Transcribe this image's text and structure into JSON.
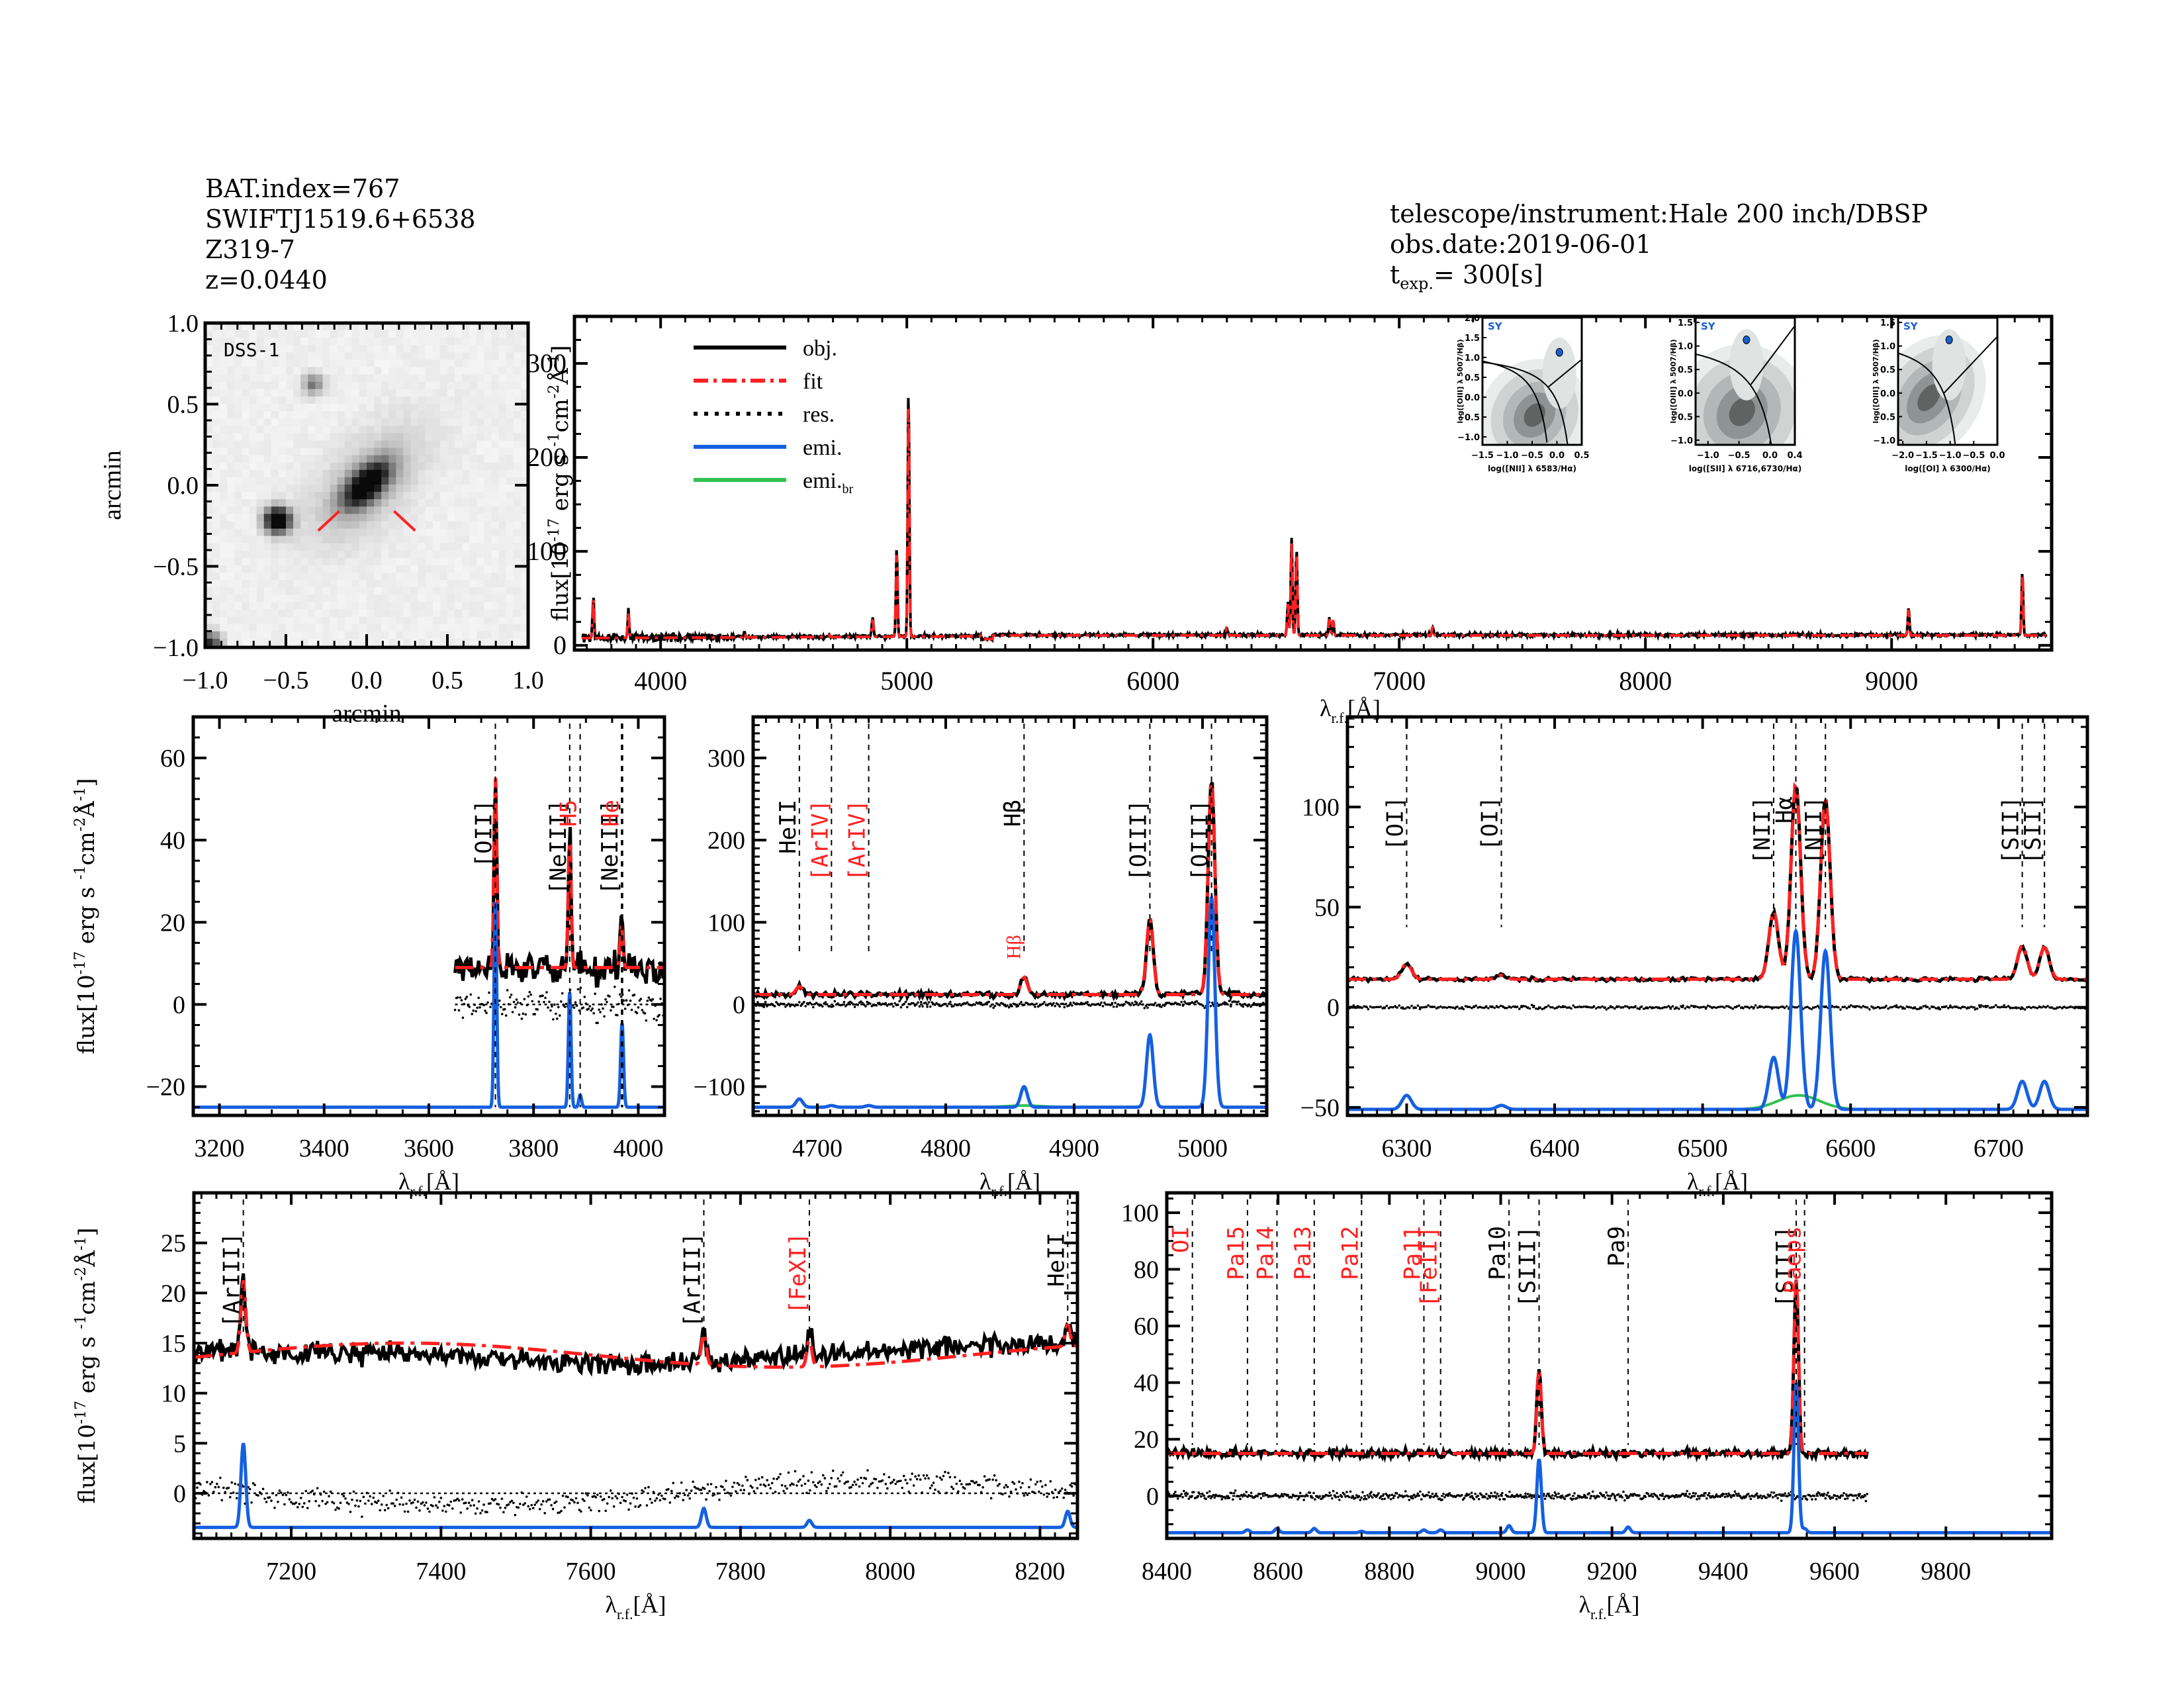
{
  "header_left": {
    "bat_index": "BAT.index=767",
    "swift_name": "SWIFTJ1519.6+6538",
    "galaxy_name": "Z319-7",
    "redshift": "z=0.0440"
  },
  "header_right": {
    "telescope": "telescope/instrument:Hale 200 inch/DBSP",
    "obs_date": "obs.date:2019-06-01",
    "texp_prefix": "t",
    "texp_sub": "exp.",
    "texp_value": "= 300[s]"
  },
  "colors": {
    "obj": "#000000",
    "fit": "#ff2020",
    "res": "#000000",
    "emi": "#1560e0",
    "emi_br": "#30c050",
    "line_label_black": "#000000",
    "line_label_red": "#ff2020",
    "bpt_point": "#1a5fd0",
    "bpt_label": "#1a5fd0"
  },
  "chart_data": [
    {
      "id": "dss-image",
      "type": "heatmap",
      "title": "DSS-1",
      "xlabel": "arcmin",
      "ylabel": "arcmin",
      "xlim": [
        -1.0,
        1.0
      ],
      "ylim": [
        -1.0,
        1.0
      ],
      "xticks": [
        "-1.0",
        "-0.5",
        "0.0",
        "0.5",
        "1.0"
      ],
      "yticks": [
        "-1.0",
        "-0.5",
        "0.0",
        "0.5",
        "1.0"
      ],
      "sources": [
        {
          "name": "target galaxy",
          "x": 0.0,
          "y": 0.0,
          "brightness": 1.0,
          "elongated": true
        },
        {
          "name": "star",
          "x": -0.55,
          "y": -0.22,
          "brightness": 1.0
        },
        {
          "name": "faint source",
          "x": -0.33,
          "y": 0.62,
          "brightness": 0.35
        },
        {
          "name": "corner source",
          "x": -0.97,
          "y": -0.98,
          "brightness": 0.6
        }
      ],
      "markers": "red target ticks below galaxy"
    },
    {
      "id": "full-spectrum",
      "type": "line",
      "xlabel": "λr.f.[Å]",
      "ylabel": "flux[10^-17 erg s^-1 cm^-2 Å^-1]",
      "xlim": [
        3650,
        9650
      ],
      "ylim": [
        -5,
        350
      ],
      "xticks": [
        4000,
        5000,
        6000,
        7000,
        8000,
        9000
      ],
      "yticks": [
        0,
        100,
        200,
        300
      ],
      "legend": {
        "position": "top-left",
        "entries": [
          "obj.",
          "fit",
          "res.",
          "emi.",
          "emi.br"
        ]
      },
      "continuum": 10,
      "peaks": [
        {
          "x": 3727,
          "y": 55
        },
        {
          "x": 3869,
          "y": 38
        },
        {
          "x": 4340,
          "y": 15
        },
        {
          "x": 4686,
          "y": 12
        },
        {
          "x": 4861,
          "y": 30
        },
        {
          "x": 4959,
          "y": 105
        },
        {
          "x": 5007,
          "y": 275
        },
        {
          "x": 6300,
          "y": 18
        },
        {
          "x": 6548,
          "y": 45
        },
        {
          "x": 6563,
          "y": 112
        },
        {
          "x": 6583,
          "y": 104
        },
        {
          "x": 6716,
          "y": 28
        },
        {
          "x": 6731,
          "y": 27
        },
        {
          "x": 7136,
          "y": 20
        },
        {
          "x": 9069,
          "y": 40
        },
        {
          "x": 9531,
          "y": 78
        }
      ]
    },
    {
      "id": "bpt-nii",
      "type": "scatter",
      "label": "SY",
      "xlabel": "log([NII] λ 6583/Hα)",
      "ylabel": "log([OIII] λ 5007/Hβ)",
      "xlim": [
        -1.5,
        0.5
      ],
      "ylim": [
        -1.2,
        2.0
      ],
      "xticks": [
        "-1.5",
        "-1.0",
        "-0.5",
        "0.0",
        "0.5"
      ],
      "yticks": [
        "-1.0",
        "-0.5",
        "0.0",
        "0.5",
        "1.0",
        "1.5",
        "2.0"
      ],
      "point": {
        "x": 0.05,
        "y": 1.13
      }
    },
    {
      "id": "bpt-sii",
      "type": "scatter",
      "label": "SY",
      "xlabel": "log([SII] λ 6716,6730/Hα)",
      "ylabel": "log([OIII] λ 5007/Hβ)",
      "xlim": [
        -1.2,
        0.4
      ],
      "ylim": [
        -1.1,
        1.6
      ],
      "xticks": [
        "-1.0",
        "-0.5",
        "0.0",
        "0.4"
      ],
      "yticks": [
        "-1.0",
        "-0.5",
        "0.0",
        "0.5",
        "1.0",
        "1.5"
      ],
      "point": {
        "x": -0.38,
        "y": 1.13
      }
    },
    {
      "id": "bpt-oi",
      "type": "scatter",
      "label": "SY",
      "xlabel": "log([OI] λ 6300/Hα)",
      "ylabel": "log([OIII] λ 5007/Hβ)",
      "xlim": [
        -2.1,
        0.0
      ],
      "ylim": [
        -1.1,
        1.6
      ],
      "xticks": [
        "-2.0",
        "-1.5",
        "-1.0",
        "-0.5",
        "0.0"
      ],
      "yticks": [
        "-1.0",
        "-0.5",
        "0.0",
        "0.5",
        "1.0",
        "1.5"
      ],
      "point": {
        "x": -1.02,
        "y": 1.13
      }
    },
    {
      "id": "zoom-oii",
      "type": "line",
      "xlabel": "λr.f.[Å]",
      "ylabel": "flux[10^-17 erg s^-1 cm^-2 Å^-1]",
      "xlim": [
        3150,
        4050
      ],
      "ylim": [
        -27,
        70
      ],
      "xticks": [
        3200,
        3400,
        3600,
        3800,
        4000
      ],
      "yticks": [
        -20,
        0,
        20,
        40,
        60
      ],
      "data_start": 3650,
      "continuum": 9,
      "emi_base": -25,
      "lines": [
        {
          "label": "[OII]",
          "x": 3727,
          "color": "black",
          "peak": 56,
          "emi": 25
        },
        {
          "label": "[NeIII]",
          "x": 3869,
          "color": "black",
          "peak": 42,
          "emi": 3
        },
        {
          "label": "H5",
          "x": 3889,
          "color": "red",
          "peak": 0,
          "emi": -22
        },
        {
          "label": "[NeIII]",
          "x": 3968,
          "color": "black",
          "peak": 20,
          "emi": -14
        },
        {
          "label": "He",
          "x": 3970,
          "color": "red",
          "peak": 0,
          "emi": -14
        }
      ]
    },
    {
      "id": "zoom-hbeta-oiii",
      "type": "line",
      "xlabel": "λr.f.[Å]",
      "xlim": [
        4650,
        5050
      ],
      "ylim": [
        -135,
        350
      ],
      "xticks": [
        4700,
        4800,
        4900,
        5000
      ],
      "yticks": [
        -100,
        0,
        100,
        200,
        300
      ],
      "continuum": 12,
      "emi_base": -125,
      "lines": [
        {
          "label": "HeII",
          "x": 4686,
          "color": "black",
          "peak": 22,
          "emi": -115
        },
        {
          "label": "[ArIV]",
          "x": 4711,
          "color": "red",
          "peak": 0,
          "emi": -123
        },
        {
          "label": "[ArIV]",
          "x": 4740,
          "color": "red",
          "peak": 0,
          "emi": -123
        },
        {
          "label": "Hβ",
          "x": 4861,
          "color": "black",
          "peak": 33,
          "emi": -100
        },
        {
          "label": "[OIII]",
          "x": 4959,
          "color": "black",
          "peak": 105,
          "emi": -37
        },
        {
          "label": "[OIII]",
          "x": 5007,
          "color": "black",
          "peak": 275,
          "emi": 130
        }
      ],
      "annotations": [
        {
          "label": "Hβbr",
          "x": 4861,
          "color": "red"
        }
      ]
    },
    {
      "id": "zoom-halpha",
      "type": "line",
      "xlabel": "λr.f.[Å]",
      "xlim": [
        6260,
        6760
      ],
      "ylim": [
        -54,
        145
      ],
      "xticks": [
        6300,
        6400,
        6500,
        6600,
        6700
      ],
      "yticks": [
        -50,
        0,
        50,
        100
      ],
      "continuum": 14,
      "emi_base": -51,
      "lines": [
        {
          "label": "[OI]",
          "x": 6300,
          "color": "black",
          "peak": 22,
          "emi": -44
        },
        {
          "label": "[OI]",
          "x": 6364,
          "color": "black",
          "peak": 16,
          "emi": -49
        },
        {
          "label": "[NII]",
          "x": 6548,
          "color": "black",
          "peak": 48,
          "emi": -25
        },
        {
          "label": "Hα",
          "x": 6563,
          "color": "black",
          "peak": 112,
          "emi": 38
        },
        {
          "label": "[NII]",
          "x": 6583,
          "color": "black",
          "peak": 104,
          "emi": 28
        },
        {
          "label": "[SII]",
          "x": 6716,
          "color": "black",
          "peak": 31,
          "emi": -37
        },
        {
          "label": "[SII]",
          "x": 6731,
          "color": "black",
          "peak": 30,
          "emi": -37
        }
      ],
      "broad_halpha": {
        "x": 6565,
        "peak": -44
      }
    },
    {
      "id": "zoom-ariii",
      "type": "line",
      "xlabel": "λr.f.[Å]",
      "ylabel": "flux[10^-17 erg s^-1 cm^-2 Å^-1]",
      "xlim": [
        7070,
        8250
      ],
      "ylim": [
        -4.5,
        30
      ],
      "xticks": [
        7200,
        7400,
        7600,
        7800,
        8000,
        8200
      ],
      "yticks": [
        0,
        5,
        10,
        15,
        20,
        25
      ],
      "continuum": 13.8,
      "emi_base": -3.4,
      "lines": [
        {
          "label": "[ArIII]",
          "x": 7136,
          "color": "black",
          "peak": 21,
          "emi": 5
        },
        {
          "label": "[ArIII]",
          "x": 7751,
          "color": "black",
          "peak": 17,
          "emi": -1.5
        },
        {
          "label": "[FeXI]",
          "x": 7892,
          "color": "red",
          "peak": 16.5,
          "emi": -2.7
        },
        {
          "label": "HeII",
          "x": 8237,
          "color": "black",
          "peak": 16,
          "emi": -1.8
        }
      ]
    },
    {
      "id": "zoom-siii",
      "type": "line",
      "xlabel": "λr.f.[Å]",
      "xlim": [
        8400,
        9990
      ],
      "ylim": [
        -15,
        107
      ],
      "xticks": [
        8400,
        8600,
        8800,
        9000,
        9200,
        9400,
        9600,
        9800
      ],
      "yticks": [
        0,
        20,
        40,
        60,
        80,
        100
      ],
      "data_end": 9660,
      "continuum": 15,
      "emi_base": -13,
      "lines": [
        {
          "label": "OI",
          "x": 8446,
          "color": "red",
          "peak": 0,
          "emi": -13
        },
        {
          "label": "Pa15",
          "x": 8545,
          "color": "red",
          "peak": 0,
          "emi": -12
        },
        {
          "label": "Pa14",
          "x": 8598,
          "color": "red",
          "peak": 0,
          "emi": -11.5
        },
        {
          "label": "Pa13",
          "x": 8665,
          "color": "red",
          "peak": 0,
          "emi": -11.5
        },
        {
          "label": "Pa12",
          "x": 8750,
          "color": "red",
          "peak": 0,
          "emi": -12.5
        },
        {
          "label": "Pa11",
          "x": 8862,
          "color": "red",
          "peak": 0,
          "emi": -12
        },
        {
          "label": "[FeII]",
          "x": 8892,
          "color": "red",
          "peak": 0,
          "emi": -12
        },
        {
          "label": "Pa10",
          "x": 9015,
          "color": "black",
          "peak": 0,
          "emi": -10.5
        },
        {
          "label": "[SIII]",
          "x": 9069,
          "color": "black",
          "peak": 45,
          "emi": 13
        },
        {
          "label": "Pa9",
          "x": 9229,
          "color": "black",
          "peak": 0,
          "emi": -11
        },
        {
          "label": "[SIII]",
          "x": 9531,
          "color": "black",
          "peak": 77,
          "emi": 40
        },
        {
          "label": "Paeps",
          "x": 9546,
          "color": "red",
          "peak": 0,
          "emi": -11.5
        }
      ]
    }
  ],
  "legend_labels": {
    "obj": "obj.",
    "fit": "fit",
    "res": "res.",
    "emi": "emi.",
    "emi_br": "emi.",
    "emi_br_sub": "br"
  },
  "axis_text": {
    "arcmin": "arcmin",
    "flux_label": "flux[10",
    "flux_exp": "-17",
    "flux_mid": "erg s",
    "flux_s_exp": "-1",
    "flux_cm": "cm",
    "flux_cm_exp": "-2",
    "flux_A": "Å",
    "flux_A_exp": "-1",
    "flux_close": "]",
    "lambda": "λ",
    "lambda_sub": "r.f.",
    "lambda_unit": "[Å]",
    "dss_label": "DSS-1",
    "bpt_y": "log([OIII] λ 5007/Hβ)"
  }
}
